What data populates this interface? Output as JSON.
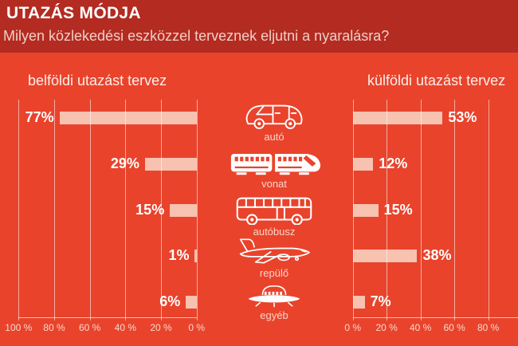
{
  "colors": {
    "background": "#e9432c",
    "header_background": "#b32b21",
    "bar_fill": "#f7c2b0",
    "gridline": "rgba(255,255,255,0.55)",
    "text_primary": "#ffffff",
    "text_soft": "#f4d2c8"
  },
  "header": {
    "title": "UTAZÁS MÓDJA",
    "subtitle": "Milyen közlekedési eszközzel terveznek eljutni a nyaralásra?"
  },
  "icons": [
    {
      "name": "car-icon",
      "label": "autó"
    },
    {
      "name": "train-icon",
      "label": "vonat"
    },
    {
      "name": "bus-icon",
      "label": "autóbusz"
    },
    {
      "name": "plane-icon",
      "label": "repülő"
    },
    {
      "name": "ufo-icon",
      "label": "egyéb"
    }
  ],
  "chart_data": [
    {
      "id": "domestic",
      "type": "bar",
      "orientation": "horizontal",
      "direction": "right-to-left",
      "title": "belföldi utazást tervez",
      "categories": [
        "autó",
        "vonat",
        "autóbusz",
        "repülő",
        "egyéb"
      ],
      "values": [
        77,
        29,
        15,
        1,
        6
      ],
      "value_labels": [
        "77%",
        "29%",
        "15%",
        "1%",
        "6%"
      ],
      "axis_ticks": [
        "100 %",
        "80 %",
        "60 %",
        "40 %",
        "20 %",
        "0 %"
      ],
      "xlim": [
        100,
        0
      ],
      "unit": "%",
      "grid": true
    },
    {
      "id": "foreign",
      "type": "bar",
      "orientation": "horizontal",
      "direction": "left-to-right",
      "title": "külföldi utazást tervez",
      "categories": [
        "autó",
        "vonat",
        "autóbusz",
        "repülő",
        "egyéb"
      ],
      "values": [
        53,
        12,
        15,
        38,
        7
      ],
      "value_labels": [
        "53%",
        "12%",
        "15%",
        "38%",
        "7%"
      ],
      "axis_ticks": [
        "0 %",
        "20 %",
        "40 %",
        "60 %",
        "80 %"
      ],
      "xlim": [
        0,
        100
      ],
      "unit": "%",
      "grid": true
    }
  ]
}
